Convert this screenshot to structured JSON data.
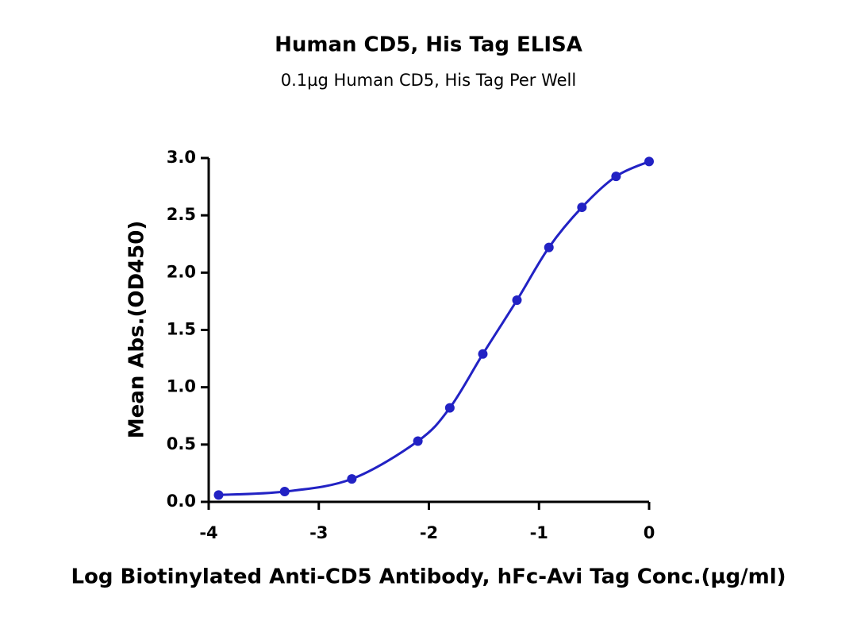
{
  "chart_data": {
    "type": "line",
    "title": "Human CD5, His Tag ELISA",
    "subtitle": "0.1µg Human CD5, His Tag Per Well",
    "x_label": "Log Biotinylated Anti-CD5 Antibody, hFc-Avi Tag Conc.(µg/ml)",
    "y_label": "Mean Abs.(OD450)",
    "x": [
      -3.91,
      -3.31,
      -2.7,
      -2.1,
      -1.81,
      -1.51,
      -1.2,
      -0.91,
      -0.61,
      -0.3,
      0
    ],
    "series": [
      {
        "name": "Human CD5, His Tag",
        "color": "#2222c4",
        "values": [
          0.06,
          0.09,
          0.2,
          0.53,
          0.82,
          1.29,
          1.76,
          2.22,
          2.57,
          2.84,
          2.97
        ]
      }
    ],
    "xlim": [
      -4,
      0
    ],
    "xticks": [
      -4,
      -3,
      -2,
      -1,
      0
    ],
    "ylim": [
      0,
      3
    ],
    "yticks": [
      {
        "value": 0,
        "label": "0.0"
      },
      {
        "value": 0.5,
        "label": "0.5"
      },
      {
        "value": 1,
        "label": "1.0"
      },
      {
        "value": 1.5,
        "label": "1.5"
      },
      {
        "value": 2,
        "label": "2.0"
      },
      {
        "value": 2.5,
        "label": "2.5"
      },
      {
        "value": 3,
        "label": "3.0"
      }
    ]
  }
}
